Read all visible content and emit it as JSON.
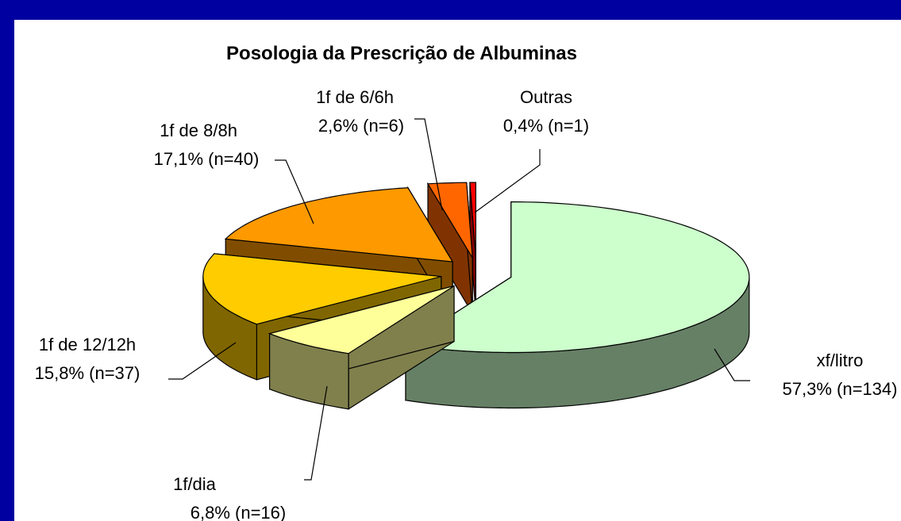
{
  "chart_data": {
    "type": "pie",
    "title": "Posologia da Prescrição de Albuminas",
    "categories": [
      "xf/litro",
      "1f/dia",
      "1f de 12/12h",
      "1f de 8/8h",
      "1f de 6/6h",
      "Outras"
    ],
    "values": [
      57.3,
      6.8,
      15.8,
      17.1,
      2.6,
      0.4
    ],
    "value_labels": [
      "57,3% (n=134)",
      "6,8% (n=16)",
      "15,8% (n=37)",
      "17,1% (n=40)",
      "2,6% (n=6)",
      "0,4% (n=1)"
    ],
    "colors": [
      "#ccffcc",
      "#ffff99",
      "#ffcc00",
      "#ff9900",
      "#ff6600",
      "#ff0000"
    ]
  }
}
